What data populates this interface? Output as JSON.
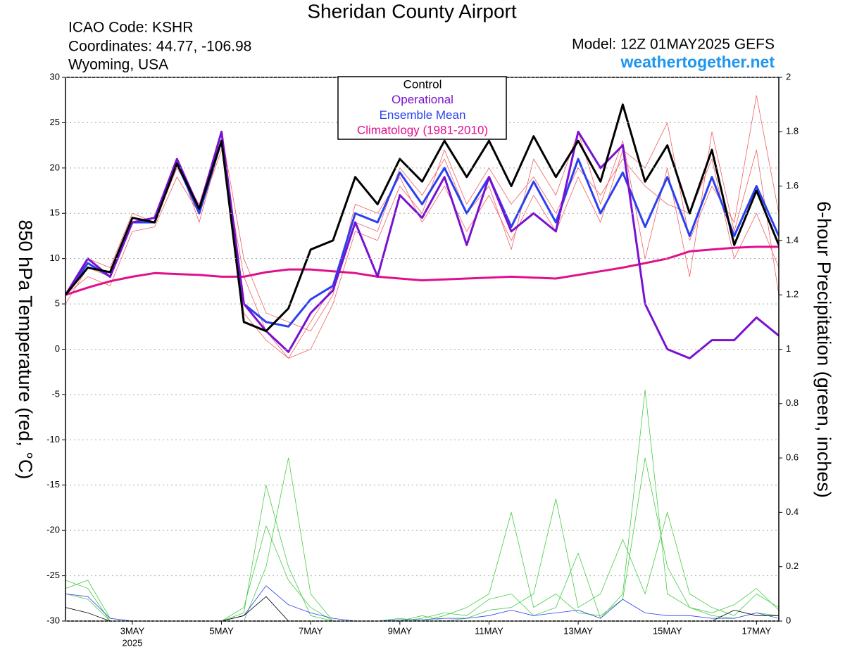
{
  "header": {
    "icao": "ICAO Code: KSHR",
    "coordinates": "Coordinates: 44.77, -106.98",
    "location": "Wyoming, USA",
    "model": "Model: 12Z 01MAY2025 GEFS",
    "site": "weathertogether.net"
  },
  "chart_data": {
    "type": "line",
    "title": "Sheridan County Airport",
    "ylabel": "850 hPa Temperature (red, °C)",
    "y2label": "6-hour Precipitation (green, inches)",
    "xlim": [
      1.5,
      17.5
    ],
    "xticks": [
      {
        "value": 3,
        "label": "3MAY"
      },
      {
        "value": 5,
        "label": "5MAY"
      },
      {
        "value": 7,
        "label": "7MAY"
      },
      {
        "value": 9,
        "label": "9MAY"
      },
      {
        "value": 11,
        "label": "11MAY"
      },
      {
        "value": 13,
        "label": "13MAY"
      },
      {
        "value": 15,
        "label": "15MAY"
      },
      {
        "value": 17,
        "label": "17MAY"
      }
    ],
    "x_sublabel": "2025",
    "ylim": [
      -30,
      30
    ],
    "yticks": [
      -30,
      -25,
      -20,
      -15,
      -10,
      -5,
      0,
      5,
      10,
      15,
      20,
      25,
      30
    ],
    "y2lim": [
      0,
      2
    ],
    "y2ticks": [
      0,
      0.2,
      0.4,
      0.6,
      0.8,
      1,
      1.2,
      1.4,
      1.6,
      1.8,
      2
    ],
    "grid": true,
    "legend": "top",
    "x": [
      1.5,
      2,
      2.5,
      3,
      3.5,
      4,
      4.5,
      5,
      5.5,
      6,
      6.5,
      7,
      7.5,
      8,
      8.5,
      9,
      9.5,
      10,
      10.5,
      11,
      11.5,
      12,
      12.5,
      13,
      13.5,
      14,
      14.5,
      15,
      15.5,
      16,
      16.5,
      17,
      17.5
    ],
    "series": [
      {
        "name": "Control",
        "color": "#000000",
        "values": [
          6,
          9,
          8.5,
          14.5,
          14,
          20.5,
          15.5,
          23,
          3,
          2,
          4.5,
          11,
          12,
          19,
          16,
          21,
          18.5,
          23,
          19,
          23,
          18,
          23.5,
          19,
          23,
          18.5,
          27,
          18.5,
          22.5,
          15,
          22,
          11.5,
          17.5,
          11.5
        ]
      },
      {
        "name": "Operational",
        "color": "#7a10d0",
        "values": [
          6,
          10,
          8,
          14,
          14.5,
          21,
          15.5,
          24,
          5,
          2,
          -0.3,
          4,
          6.5,
          14,
          8,
          17,
          14.5,
          19,
          11.5,
          19,
          13,
          15,
          13,
          24,
          20,
          22.5,
          5,
          0,
          -1,
          1,
          1,
          3.5,
          1.5
        ]
      },
      {
        "name": "Ensemble Mean",
        "color": "#2a40f0",
        "values": [
          6,
          9.5,
          8,
          14,
          14,
          20.5,
          15,
          23,
          5,
          3,
          2.5,
          5.5,
          7,
          15,
          14,
          19.5,
          16,
          20,
          15,
          19,
          13.5,
          18.5,
          14,
          21,
          15,
          19.5,
          13.5,
          19,
          12.5,
          19,
          12.5,
          18,
          12.5
        ]
      },
      {
        "name": "Climatology (1981-2010)",
        "color": "#e0108c",
        "values": [
          6,
          6.8,
          7.5,
          8,
          8.4,
          8.3,
          8.2,
          8,
          8,
          8.5,
          8.8,
          8.8,
          8.6,
          8.4,
          8,
          7.8,
          7.6,
          7.7,
          7.8,
          7.9,
          8,
          7.9,
          7.8,
          8.2,
          8.6,
          9,
          9.5,
          10,
          10.8,
          11,
          11.2,
          11.3,
          11.3
        ]
      },
      {
        "color": "#000000",
        "axis": "y2",
        "values": [
          0.05,
          0.03,
          0,
          0,
          0,
          0,
          0,
          0,
          0.02,
          0.09,
          0,
          0,
          0,
          0,
          0,
          0,
          0,
          0,
          0,
          0,
          0,
          0,
          0,
          0,
          0,
          0,
          0,
          0,
          0,
          0,
          0.04,
          0.02,
          0.02
        ]
      },
      {
        "color": "#2a40f0",
        "axis": "y2",
        "values": [
          0.1,
          0.09,
          0.01,
          0,
          0,
          0,
          0,
          0,
          0.02,
          0.13,
          0.06,
          0.03,
          0.01,
          0,
          0,
          0.005,
          0.005,
          0.01,
          0.01,
          0.02,
          0.04,
          0.02,
          0.03,
          0.04,
          0.01,
          0.08,
          0.03,
          0.02,
          0.02,
          0.01,
          0.01,
          0.03,
          0.01
        ]
      },
      {
        "color": "#f06060",
        "values": [
          6,
          8,
          7,
          13,
          13.5,
          19,
          15,
          22,
          8,
          2,
          -1,
          0,
          5,
          13,
          12,
          18,
          15,
          22,
          16,
          20,
          16,
          19,
          15,
          20,
          17,
          21,
          18,
          16,
          15,
          21,
          10,
          15,
          9
        ]
      },
      {
        "color": "#f06060",
        "values": [
          5,
          9,
          8,
          14,
          14,
          20,
          16,
          24,
          10,
          4,
          3,
          2,
          6,
          16,
          15,
          19,
          14,
          18,
          13,
          17,
          12,
          17,
          13,
          19,
          14,
          22,
          20,
          25,
          12,
          18,
          14,
          28,
          15
        ]
      },
      {
        "color": "#f06060",
        "values": [
          6,
          10,
          9,
          15,
          14,
          21,
          14,
          23,
          4,
          1,
          -1,
          3,
          7,
          14,
          13,
          20,
          17,
          21,
          15,
          18,
          11,
          21,
          17,
          24,
          16,
          23,
          10,
          20,
          8,
          24,
          13,
          22,
          6
        ]
      },
      {
        "color": "#44cc44",
        "axis": "y2",
        "values": [
          0.15,
          0.12,
          0,
          0,
          0,
          0,
          0,
          0,
          0.05,
          0.35,
          0.15,
          0.05,
          0,
          0,
          0,
          0.01,
          0,
          0.02,
          0.05,
          0.1,
          0.4,
          0.05,
          0.1,
          0.03,
          0.02,
          0.08,
          0.6,
          0.2,
          0.05,
          0.02,
          0.01,
          0.03,
          0.02
        ]
      },
      {
        "color": "#44cc44",
        "axis": "y2",
        "values": [
          0.1,
          0.08,
          0,
          0,
          0,
          0,
          0,
          0,
          0,
          0.2,
          0.6,
          0.1,
          0,
          0,
          0,
          0,
          0.02,
          0,
          0.01,
          0.04,
          0.05,
          0.1,
          0.45,
          0.05,
          0.1,
          0.3,
          0.1,
          0.4,
          0.1,
          0.05,
          0.02,
          0.1,
          0.05
        ]
      },
      {
        "color": "#44cc44",
        "axis": "y2",
        "values": [
          0.12,
          0.15,
          0.01,
          0,
          0,
          0,
          0,
          0,
          0.03,
          0.5,
          0.2,
          0.02,
          0,
          0,
          0,
          0,
          0.01,
          0.03,
          0.02,
          0.08,
          0.1,
          0.02,
          0.05,
          0.25,
          0.01,
          0.1,
          0.85,
          0.1,
          0.05,
          0.03,
          0.06,
          0.12,
          0.04
        ]
      }
    ]
  }
}
